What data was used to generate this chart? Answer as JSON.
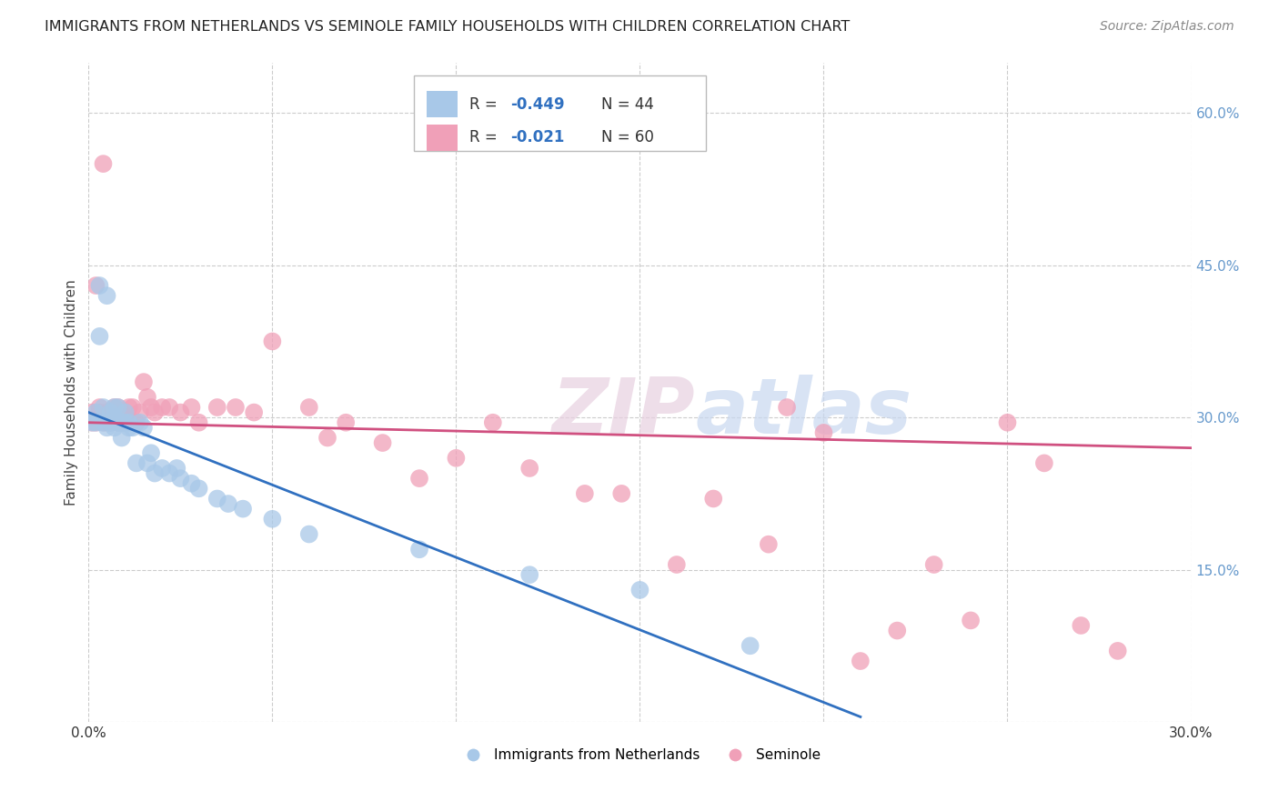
{
  "title": "IMMIGRANTS FROM NETHERLANDS VS SEMINOLE FAMILY HOUSEHOLDS WITH CHILDREN CORRELATION CHART",
  "source": "Source: ZipAtlas.com",
  "ylabel": "Family Households with Children",
  "xlim": [
    0.0,
    0.3
  ],
  "ylim": [
    0.0,
    0.65
  ],
  "xticks": [
    0.0,
    0.05,
    0.1,
    0.15,
    0.2,
    0.25,
    0.3
  ],
  "xtick_labels": [
    "0.0%",
    "",
    "",
    "",
    "",
    "",
    "30.0%"
  ],
  "yticks_right": [
    0.0,
    0.15,
    0.3,
    0.45,
    0.6
  ],
  "ytick_labels_right": [
    "",
    "15.0%",
    "30.0%",
    "45.0%",
    "60.0%"
  ],
  "legend_r1": "-0.449",
  "legend_n1": "44",
  "legend_r2": "-0.021",
  "legend_n2": "60",
  "color_blue": "#a8c8e8",
  "color_pink": "#f0a0b8",
  "line_color_blue": "#3070c0",
  "line_color_pink": "#d05080",
  "watermark_zip": "ZIP",
  "watermark_atlas": "atlas",
  "blue_scatter_x": [
    0.001,
    0.002,
    0.002,
    0.003,
    0.003,
    0.004,
    0.004,
    0.005,
    0.005,
    0.006,
    0.006,
    0.007,
    0.007,
    0.007,
    0.008,
    0.008,
    0.009,
    0.009,
    0.01,
    0.01,
    0.011,
    0.011,
    0.012,
    0.013,
    0.014,
    0.015,
    0.016,
    0.017,
    0.018,
    0.02,
    0.022,
    0.024,
    0.025,
    0.028,
    0.03,
    0.035,
    0.038,
    0.042,
    0.05,
    0.06,
    0.09,
    0.12,
    0.15,
    0.18
  ],
  "blue_scatter_y": [
    0.295,
    0.305,
    0.295,
    0.43,
    0.38,
    0.295,
    0.31,
    0.29,
    0.42,
    0.305,
    0.295,
    0.29,
    0.3,
    0.31,
    0.295,
    0.31,
    0.28,
    0.295,
    0.295,
    0.305,
    0.29,
    0.295,
    0.29,
    0.255,
    0.295,
    0.29,
    0.255,
    0.265,
    0.245,
    0.25,
    0.245,
    0.25,
    0.24,
    0.235,
    0.23,
    0.22,
    0.215,
    0.21,
    0.2,
    0.185,
    0.17,
    0.145,
    0.13,
    0.075
  ],
  "pink_scatter_x": [
    0.001,
    0.001,
    0.002,
    0.002,
    0.003,
    0.003,
    0.004,
    0.004,
    0.005,
    0.005,
    0.006,
    0.006,
    0.007,
    0.007,
    0.008,
    0.008,
    0.009,
    0.009,
    0.01,
    0.01,
    0.011,
    0.012,
    0.013,
    0.014,
    0.015,
    0.016,
    0.017,
    0.018,
    0.02,
    0.022,
    0.025,
    0.028,
    0.03,
    0.035,
    0.04,
    0.045,
    0.05,
    0.06,
    0.065,
    0.07,
    0.08,
    0.09,
    0.1,
    0.11,
    0.12,
    0.135,
    0.145,
    0.16,
    0.17,
    0.185,
    0.19,
    0.2,
    0.21,
    0.22,
    0.23,
    0.24,
    0.25,
    0.26,
    0.27,
    0.28
  ],
  "pink_scatter_y": [
    0.295,
    0.305,
    0.43,
    0.295,
    0.305,
    0.31,
    0.295,
    0.55,
    0.295,
    0.305,
    0.305,
    0.295,
    0.305,
    0.31,
    0.295,
    0.31,
    0.295,
    0.305,
    0.305,
    0.295,
    0.31,
    0.31,
    0.295,
    0.305,
    0.335,
    0.32,
    0.31,
    0.305,
    0.31,
    0.31,
    0.305,
    0.31,
    0.295,
    0.31,
    0.31,
    0.305,
    0.375,
    0.31,
    0.28,
    0.295,
    0.275,
    0.24,
    0.26,
    0.295,
    0.25,
    0.225,
    0.225,
    0.155,
    0.22,
    0.175,
    0.31,
    0.285,
    0.06,
    0.09,
    0.155,
    0.1,
    0.295,
    0.255,
    0.095,
    0.07
  ],
  "blue_line_x": [
    0.0,
    0.21
  ],
  "blue_line_y": [
    0.305,
    0.005
  ],
  "pink_line_x": [
    0.0,
    0.3
  ],
  "pink_line_y": [
    0.295,
    0.27
  ],
  "background_color": "#ffffff",
  "grid_color": "#cccccc",
  "title_color": "#222222",
  "axis_label_color": "#444444",
  "tick_color_right": "#6699cc"
}
